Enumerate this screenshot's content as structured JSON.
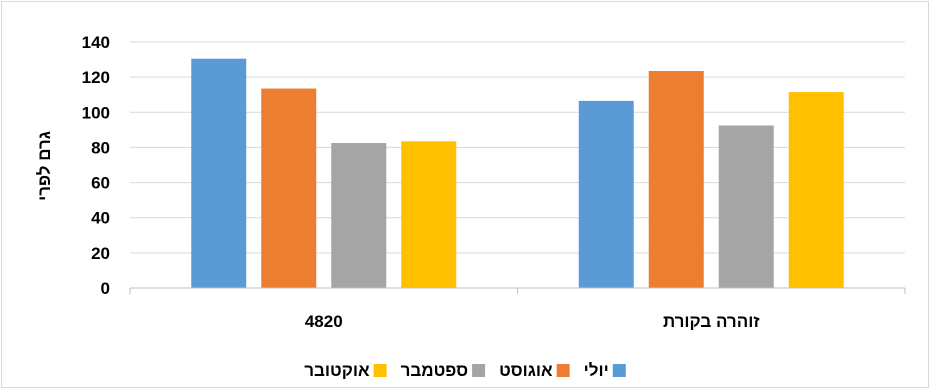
{
  "chart_data": {
    "type": "bar",
    "categories": [
      "4820",
      "זוהרה בקורת"
    ],
    "series": [
      {
        "name": "יולי",
        "color": "#5B9BD5",
        "values": [
          130.5,
          106.5
        ]
      },
      {
        "name": "אוגוסט",
        "color": "#ED7D31",
        "values": [
          113.5,
          123.5
        ]
      },
      {
        "name": "ספטמבר",
        "color": "#A5A5A5",
        "values": [
          82.5,
          92.5
        ]
      },
      {
        "name": "אוקטובר",
        "color": "#FFC000",
        "values": [
          83.5,
          111.5
        ]
      }
    ],
    "title": "",
    "xlabel": "",
    "ylabel": "גרם לפרי",
    "ylim": [
      0,
      140
    ],
    "yticks": [
      0,
      20,
      40,
      60,
      80,
      100,
      120,
      140
    ],
    "grid": true,
    "legend_position": "bottom"
  }
}
